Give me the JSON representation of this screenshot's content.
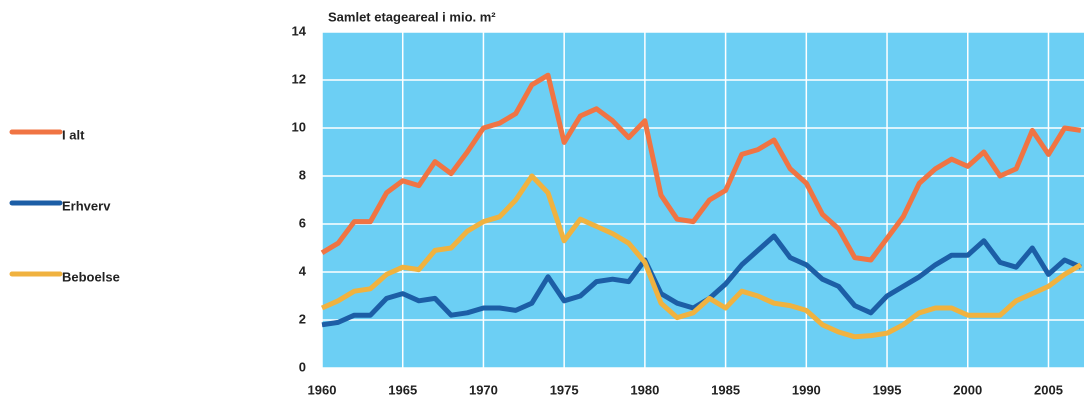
{
  "chart_data": {
    "type": "line",
    "title": "Samlet etageareal i mio. m²",
    "x": [
      1960,
      1961,
      1962,
      1963,
      1964,
      1965,
      1966,
      1967,
      1968,
      1969,
      1970,
      1971,
      1972,
      1973,
      1974,
      1975,
      1976,
      1977,
      1978,
      1979,
      1980,
      1981,
      1982,
      1983,
      1984,
      1985,
      1986,
      1987,
      1988,
      1989,
      1990,
      1991,
      1992,
      1993,
      1994,
      1995,
      1996,
      1997,
      1998,
      1999,
      2000,
      2001,
      2002,
      2003,
      2004,
      2005,
      2006,
      2007
    ],
    "series": [
      {
        "name": "I alt",
        "color": "#f07443",
        "values": [
          4.8,
          5.2,
          6.1,
          6.1,
          7.3,
          7.8,
          7.6,
          8.6,
          8.1,
          9.0,
          10.0,
          10.2,
          10.6,
          11.8,
          12.2,
          9.4,
          10.5,
          10.8,
          10.3,
          9.6,
          10.3,
          7.2,
          6.2,
          6.1,
          7.0,
          7.4,
          8.9,
          9.1,
          9.5,
          8.3,
          7.7,
          6.4,
          5.8,
          4.6,
          4.5,
          5.4,
          6.3,
          7.7,
          8.3,
          8.7,
          8.4,
          9.0,
          8.0,
          8.3,
          9.9,
          8.9,
          10.0,
          9.9
        ]
      },
      {
        "name": "Erhverv",
        "color": "#1c5ea6",
        "values": [
          1.8,
          1.9,
          2.2,
          2.2,
          2.9,
          3.1,
          2.8,
          2.9,
          2.2,
          2.3,
          2.5,
          2.5,
          2.4,
          2.7,
          3.8,
          2.8,
          3.0,
          3.6,
          3.7,
          3.6,
          4.5,
          3.1,
          2.7,
          2.5,
          2.9,
          3.5,
          4.3,
          4.9,
          5.5,
          4.6,
          4.3,
          3.7,
          3.4,
          2.6,
          2.3,
          3.0,
          3.4,
          3.8,
          4.3,
          4.7,
          4.7,
          5.3,
          4.4,
          4.2,
          5.0,
          3.9,
          4.5,
          4.2
        ]
      },
      {
        "name": "Beboelse",
        "color": "#f0b23f",
        "values": [
          2.5,
          2.8,
          3.2,
          3.3,
          3.9,
          4.2,
          4.1,
          4.9,
          5.0,
          5.7,
          6.1,
          6.3,
          7.0,
          8.0,
          7.3,
          5.3,
          6.2,
          5.9,
          5.6,
          5.2,
          4.4,
          2.7,
          2.1,
          2.3,
          2.9,
          2.5,
          3.2,
          3.0,
          2.7,
          2.6,
          2.4,
          1.8,
          1.5,
          1.3,
          1.35,
          1.45,
          1.8,
          2.3,
          2.5,
          2.5,
          2.2,
          2.2,
          2.2,
          2.8,
          3.1,
          3.4,
          3.9,
          4.3
        ]
      }
    ],
    "xlim": [
      1960,
      2007.2
    ],
    "xticks": [
      1960,
      1965,
      1970,
      1975,
      1980,
      1985,
      1990,
      1995,
      2000,
      2005
    ],
    "ylim": [
      0,
      14
    ],
    "yticks": [
      0,
      2,
      4,
      6,
      8,
      10,
      12,
      14
    ],
    "grid": true,
    "background": "#6ccff4",
    "legend": "left"
  }
}
